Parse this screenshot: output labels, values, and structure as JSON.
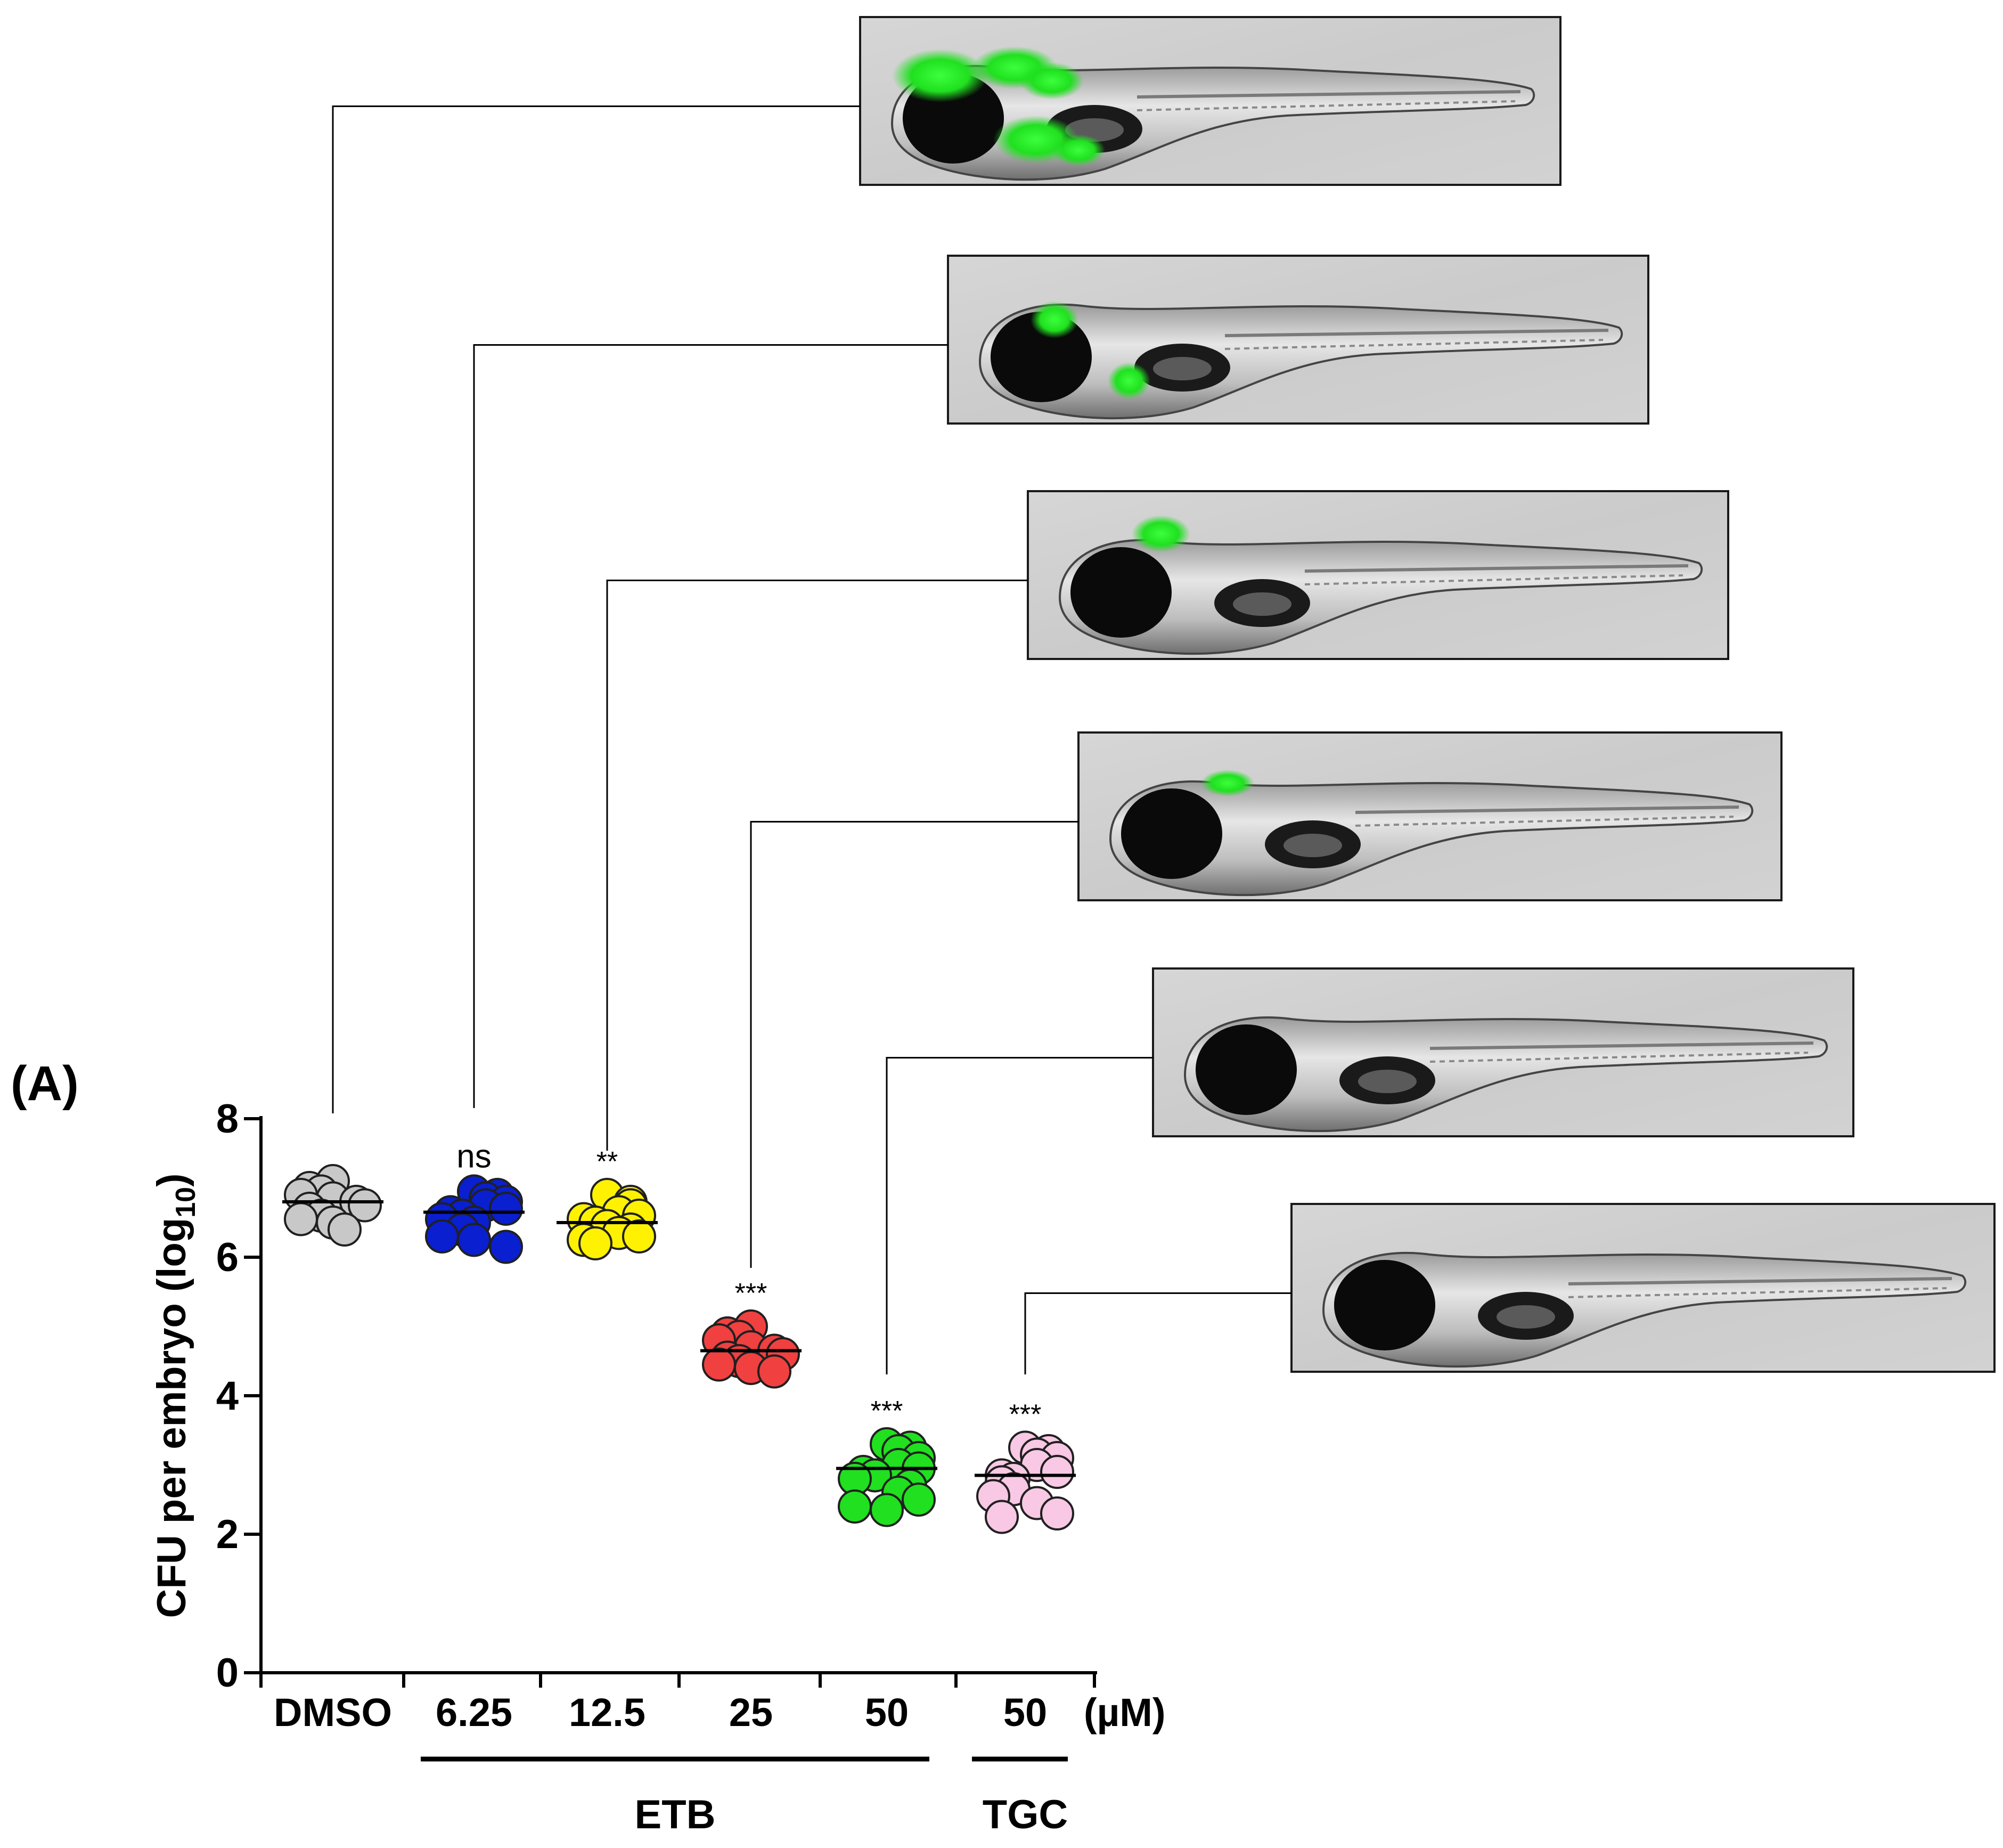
{
  "panel_label": "(A)",
  "chart_data": {
    "type": "scatter",
    "title": "",
    "ylabel_main": "CFU per embryo (log",
    "ylabel_sub": "10",
    "ylabel_end": ")",
    "ylim": [
      0,
      8
    ],
    "yticks": [
      "0",
      "2",
      "4",
      "6",
      "8"
    ],
    "unit_label": "(µM)",
    "categories": [
      "DMSO",
      "6.25",
      "12.5",
      "25",
      "50",
      "50"
    ],
    "groups": [
      {
        "name": "ETB",
        "span": [
          1,
          4
        ]
      },
      {
        "name": "TGC",
        "span": [
          5,
          5
        ]
      }
    ],
    "series": [
      {
        "category": "DMSO",
        "color": "#c8c8c8",
        "mean": 6.8,
        "significance": "",
        "values": [
          7.1,
          7.0,
          6.95,
          6.9,
          6.85,
          6.8,
          6.75,
          6.7,
          6.6,
          6.55,
          6.5,
          6.4
        ]
      },
      {
        "category": "6.25",
        "color": "#0a1fd0",
        "mean": 6.65,
        "significance": "ns",
        "values": [
          6.95,
          6.9,
          6.85,
          6.8,
          6.75,
          6.7,
          6.65,
          6.6,
          6.55,
          6.5,
          6.4,
          6.3,
          6.25,
          6.15
        ]
      },
      {
        "category": "12.5",
        "color": "#fff200",
        "mean": 6.5,
        "significance": "**",
        "values": [
          6.9,
          6.8,
          6.75,
          6.65,
          6.6,
          6.55,
          6.5,
          6.45,
          6.4,
          6.35,
          6.3,
          6.25,
          6.2
        ]
      },
      {
        "category": "25",
        "color": "#f04040",
        "mean": 4.65,
        "significance": "***",
        "values": [
          5.0,
          4.9,
          4.85,
          4.8,
          4.7,
          4.65,
          4.6,
          4.55,
          4.5,
          4.45,
          4.4,
          4.35
        ]
      },
      {
        "category": "50",
        "color": "#20e020",
        "mean": 2.95,
        "significance": "***",
        "values": [
          3.3,
          3.25,
          3.2,
          3.1,
          3.0,
          2.95,
          2.9,
          2.85,
          2.8,
          2.7,
          2.6,
          2.5,
          2.4,
          2.35
        ]
      },
      {
        "category": "50",
        "color": "#f8c8e4",
        "mean": 2.85,
        "significance": "***",
        "values": [
          3.25,
          3.2,
          3.15,
          3.1,
          3.0,
          2.9,
          2.85,
          2.8,
          2.75,
          2.65,
          2.55,
          2.45,
          2.3,
          2.25
        ]
      }
    ]
  },
  "embryo_images": [
    {
      "category": "DMSO",
      "fluorescence": "high",
      "image_label": "zebrafish-embryo-dmso"
    },
    {
      "category": "ETB 6.25",
      "fluorescence": "moderate",
      "image_label": "zebrafish-embryo-etb-6.25"
    },
    {
      "category": "ETB 12.5",
      "fluorescence": "low",
      "image_label": "zebrafish-embryo-etb-12.5"
    },
    {
      "category": "ETB 25",
      "fluorescence": "faint",
      "image_label": "zebrafish-embryo-etb-25"
    },
    {
      "category": "ETB 50",
      "fluorescence": "trace",
      "image_label": "zebrafish-embryo-etb-50"
    },
    {
      "category": "TGC 50",
      "fluorescence": "trace",
      "image_label": "zebrafish-embryo-tgc-50"
    }
  ]
}
